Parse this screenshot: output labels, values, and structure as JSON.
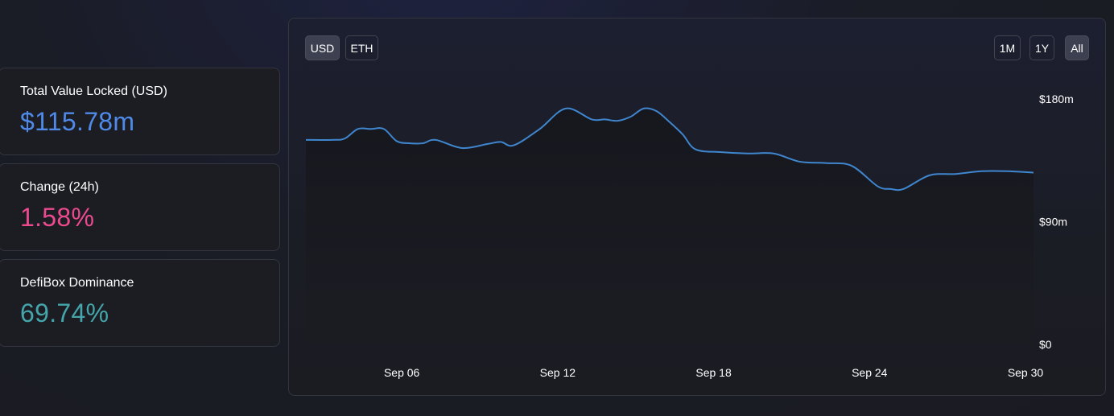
{
  "stats": [
    {
      "label": "Total Value Locked (USD)",
      "value": "$115.78m",
      "color": "#4f8ae8"
    },
    {
      "label": "Change (24h)",
      "value": "1.58%",
      "color": "#eb4a8f"
    },
    {
      "label": "DefiBox Dominance",
      "value": "69.74%",
      "color": "#44a5aa"
    }
  ],
  "currency_toggle": {
    "usd": "USD",
    "eth": "ETH",
    "selected": "USD"
  },
  "range_toggle": {
    "m1": "1M",
    "y1": "1Y",
    "all": "All",
    "selected": "All"
  },
  "chart_data": {
    "type": "area",
    "x_tick_labels": [
      "Sep 06",
      "Sep 12",
      "Sep 18",
      "Sep 24",
      "Sep 30"
    ],
    "y_tick_labels": [
      "$180m",
      "$90m",
      "$0"
    ],
    "ylim": [
      0,
      180
    ],
    "xlim": [
      0,
      28
    ],
    "y_unit": "m USD",
    "line_color": "#3f86cf",
    "series": [
      {
        "x": [
          0,
          1,
          1.5,
          2,
          2.5,
          3,
          3.5,
          4,
          4.5,
          5,
          6,
          7,
          7.5,
          8,
          9,
          10,
          11,
          11.5,
          12,
          12.5,
          13,
          13.5,
          14,
          14.5,
          15,
          16,
          17,
          18,
          19,
          20,
          21,
          22,
          22.5,
          23,
          24,
          25,
          26,
          27,
          28
        ],
        "values": [
          150,
          150,
          151,
          158,
          158,
          158,
          149,
          147.5,
          147.5,
          150,
          144,
          147,
          148.5,
          146,
          158,
          173,
          165,
          165,
          164,
          167,
          173,
          171,
          163,
          154,
          143,
          141,
          140,
          140,
          134,
          133,
          131,
          116,
          114,
          114,
          124,
          125,
          127,
          127,
          126
        ]
      }
    ]
  }
}
